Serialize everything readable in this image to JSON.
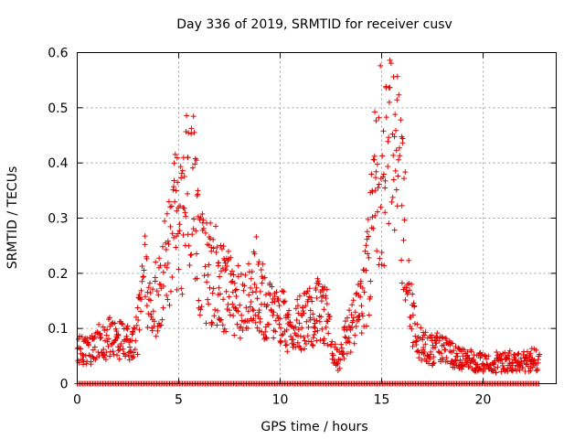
{
  "chart_data": {
    "type": "scatter",
    "title": "Day 336 of 2019, SRMTID for receiver cusv",
    "xlabel": "GPS time / hours",
    "ylabel": "SRMTID / TECUs",
    "xlim": [
      0,
      23.6
    ],
    "ylim": [
      0,
      0.6
    ],
    "xticks": [
      0,
      5,
      10,
      15,
      20
    ],
    "xtick_labels": [
      "0",
      "5",
      "10",
      "15",
      "20"
    ],
    "yticks": [
      0,
      0.1,
      0.2,
      0.3,
      0.4,
      0.5,
      0.6
    ],
    "ytick_labels": [
      "0",
      "0.1",
      "0.2",
      "0.3",
      "0.4",
      "0.5",
      "0.6"
    ],
    "grid": true,
    "marker": "+",
    "color": "#e00000",
    "series": [
      {
        "name": "SRMTID",
        "envelope_x": [
          0,
          0.5,
          1,
          1.5,
          2,
          2.5,
          2.8,
          3,
          3.3,
          3.6,
          4,
          4.3,
          4.6,
          4.8,
          5,
          5.3,
          5.5,
          5.8,
          6,
          6.3,
          6.6,
          7,
          7.5,
          8,
          8.5,
          8.8,
          9,
          9.5,
          10,
          10.5,
          11,
          11.5,
          12,
          12.3,
          12.6,
          12.9,
          13.2,
          13.5,
          14,
          14.3,
          14.6,
          14.9,
          15.1,
          15.3,
          15.5,
          15.7,
          15.9,
          16.1,
          16.3,
          16.5,
          16.8,
          17,
          17.5,
          18,
          18.5,
          19,
          19.5,
          20,
          20.5,
          21,
          21.5,
          22,
          22.5,
          22.8
        ],
        "envelope_y": [
          0.06,
          0.06,
          0.07,
          0.075,
          0.08,
          0.07,
          0.07,
          0.1,
          0.2,
          0.12,
          0.15,
          0.2,
          0.25,
          0.3,
          0.28,
          0.3,
          0.4,
          0.33,
          0.22,
          0.2,
          0.19,
          0.18,
          0.16,
          0.15,
          0.14,
          0.2,
          0.14,
          0.13,
          0.12,
          0.1,
          0.11,
          0.12,
          0.13,
          0.12,
          0.05,
          0.04,
          0.08,
          0.1,
          0.13,
          0.2,
          0.3,
          0.4,
          0.38,
          0.45,
          0.48,
          0.42,
          0.36,
          0.28,
          0.2,
          0.12,
          0.08,
          0.07,
          0.06,
          0.06,
          0.05,
          0.045,
          0.04,
          0.04,
          0.035,
          0.04,
          0.04,
          0.04,
          0.04,
          0.045
        ],
        "spread": 0.45,
        "sample_interval_hours": 0.03,
        "zero_run_x_range": [
          0,
          22.8
        ]
      }
    ]
  }
}
